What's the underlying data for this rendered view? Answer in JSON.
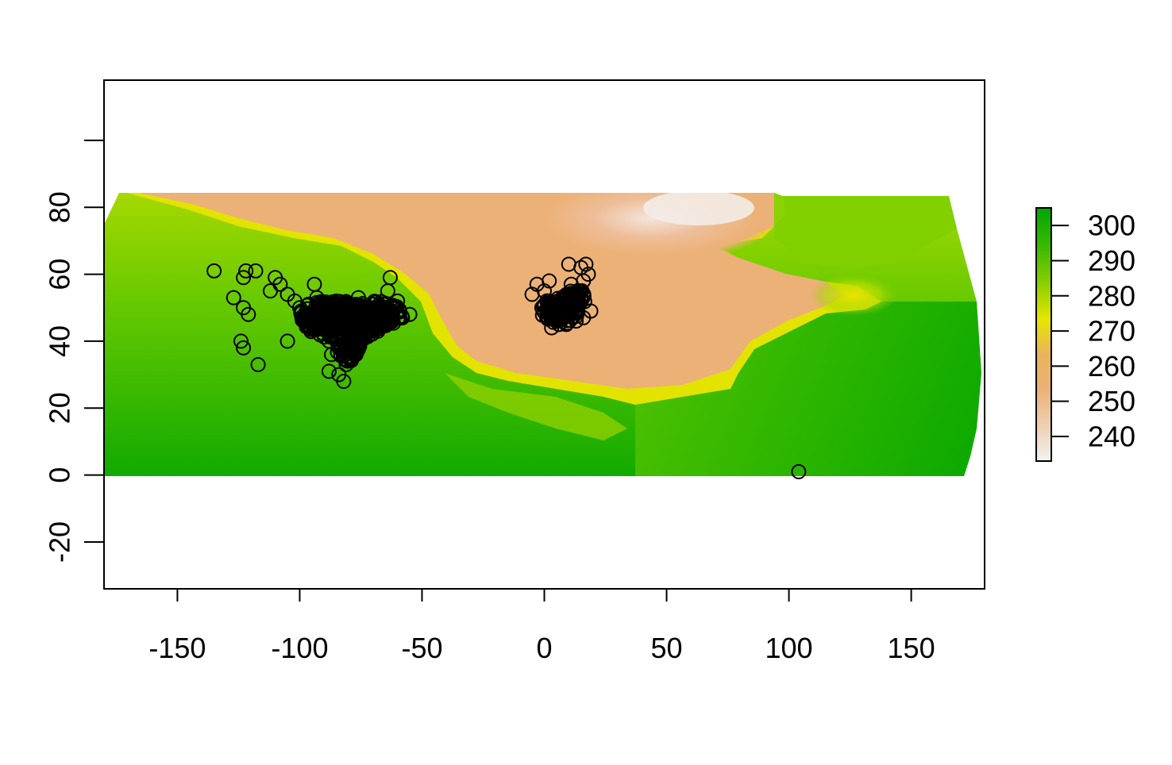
{
  "chart_data": {
    "type": "scatter",
    "title": "",
    "xlabel": "",
    "ylabel": "",
    "xlim": [
      -180,
      180
    ],
    "ylim": [
      -34,
      118
    ],
    "x_ticks": [
      -150,
      -100,
      -50,
      0,
      50,
      100,
      150
    ],
    "x_tick_labels": [
      "-150",
      "-100",
      "-50",
      "0",
      "50",
      "100",
      "150"
    ],
    "y_ticks": [
      -20,
      0,
      20,
      40,
      60,
      80,
      100
    ],
    "y_tick_labels": [
      "-20",
      "0",
      "20",
      "40",
      "60",
      "80",
      ""
    ],
    "raster": {
      "extent_x": [
        -180,
        179
      ],
      "extent_y": [
        0,
        85
      ],
      "colors": {
        "high": "#00a600",
        "mid": "#e6e600",
        "low": "#f2f2f2",
        "tan": "#ecb176"
      }
    },
    "legend": {
      "placement": "right",
      "min": 233,
      "max": 305,
      "tick_values": [
        240,
        250,
        260,
        270,
        280,
        290,
        300
      ],
      "tick_labels": [
        "240",
        "250",
        "260",
        "270",
        "280",
        "290",
        "300"
      ],
      "stops": [
        "#f2f2f2",
        "#eecfb0",
        "#ecb176",
        "#ebb25e",
        "#e6e600",
        "#8bd000",
        "#3ebb00",
        "#00a600"
      ]
    },
    "series": [
      {
        "marker": "open-circle",
        "points": [
          [
            -135,
            61
          ],
          [
            -127,
            53
          ],
          [
            -122,
            61
          ],
          [
            -123,
            59
          ],
          [
            -118,
            61
          ],
          [
            -110,
            59
          ],
          [
            -108,
            57
          ],
          [
            -112,
            55
          ],
          [
            -105,
            54
          ],
          [
            -94,
            57
          ],
          [
            -123,
            50
          ],
          [
            -121,
            48
          ],
          [
            -124,
            40
          ],
          [
            -123,
            38
          ],
          [
            -117,
            33
          ],
          [
            -105,
            40
          ],
          [
            -88,
            31
          ],
          [
            -84,
            30
          ],
          [
            -82,
            28
          ],
          [
            -79,
            35
          ],
          [
            -63,
            59
          ],
          [
            -64,
            55
          ],
          [
            -60,
            52
          ],
          [
            -55,
            48
          ],
          [
            -100,
            50
          ],
          [
            -95,
            47
          ],
          [
            -90,
            46
          ],
          [
            -86,
            44
          ],
          [
            -82,
            42
          ],
          [
            -80,
            45
          ],
          [
            -75,
            47
          ],
          [
            -70,
            46
          ],
          [
            -66,
            49
          ],
          [
            -62,
            48
          ],
          [
            -58,
            47
          ],
          [
            -78,
            40
          ],
          [
            -84,
            38
          ],
          [
            -88,
            40
          ],
          [
            -92,
            44
          ],
          [
            -72,
            50
          ],
          [
            -76,
            53
          ],
          [
            -85,
            52
          ],
          [
            -80,
            50
          ],
          [
            -90,
            51
          ],
          [
            -68,
            43
          ],
          [
            -74,
            42
          ],
          [
            -79,
            43
          ],
          [
            -83,
            47
          ],
          [
            -97,
            48
          ],
          [
            -102,
            52
          ],
          [
            -93,
            53
          ],
          [
            -86,
            49
          ],
          [
            -77,
            36
          ],
          [
            -81,
            33
          ],
          [
            -87,
            36
          ],
          [
            -5,
            54
          ],
          [
            -3,
            57
          ],
          [
            0,
            55
          ],
          [
            2,
            52
          ],
          [
            4,
            50
          ],
          [
            1,
            47
          ],
          [
            3,
            44
          ],
          [
            6,
            45
          ],
          [
            8,
            48
          ],
          [
            10,
            50
          ],
          [
            12,
            52
          ],
          [
            14,
            55
          ],
          [
            11,
            57
          ],
          [
            16,
            58
          ],
          [
            18,
            60
          ],
          [
            10,
            63
          ],
          [
            15,
            62
          ],
          [
            17,
            63
          ],
          [
            19,
            49
          ],
          [
            16,
            47
          ],
          [
            13,
            46
          ],
          [
            9,
            45
          ],
          [
            5,
            46
          ],
          [
            7,
            51
          ],
          [
            -1,
            50
          ],
          [
            2,
            58
          ],
          [
            104,
            1
          ]
        ],
        "dense_regions": [
          {
            "center": [
              -82,
              46
            ],
            "spread": [
              16,
              6
            ]
          },
          {
            "center": [
              -68,
              48
            ],
            "spread": [
              10,
              4
            ]
          },
          {
            "center": [
              -92,
              48
            ],
            "spread": [
              8,
              4
            ]
          },
          {
            "center": [
              -80,
              38
            ],
            "spread": [
              5,
              4
            ]
          },
          {
            "center": [
              6,
              49
            ],
            "spread": [
              8,
              4
            ]
          },
          {
            "center": [
              12,
              53
            ],
            "spread": [
              5,
              3
            ]
          }
        ]
      }
    ]
  }
}
